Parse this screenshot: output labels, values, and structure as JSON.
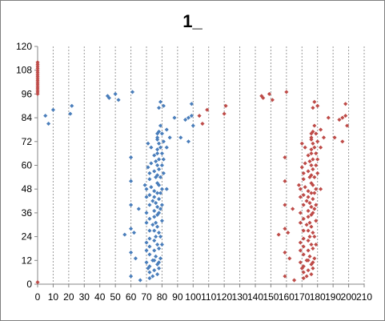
{
  "chart_data": {
    "type": "scatter",
    "title": "1_",
    "xlabel": "",
    "ylabel": "",
    "xlim": [
      0,
      210
    ],
    "ylim": [
      0,
      120
    ],
    "x_ticks": [
      0,
      10,
      20,
      30,
      40,
      50,
      60,
      70,
      80,
      90,
      100,
      110,
      120,
      130,
      140,
      150,
      160,
      170,
      180,
      190,
      200,
      210
    ],
    "y_ticks": [
      0,
      12,
      24,
      36,
      48,
      60,
      72,
      84,
      96,
      108,
      120
    ],
    "x_gridlines": true,
    "y_gridlines": false,
    "legend": "none",
    "series": [
      {
        "color": "#4a7ebb",
        "marker": "diamond",
        "points": [
          [
            5,
            85
          ],
          [
            7,
            81
          ],
          [
            10,
            88
          ],
          [
            21,
            86
          ],
          [
            22,
            90
          ],
          [
            45,
            95
          ],
          [
            46,
            94
          ],
          [
            50,
            96
          ],
          [
            52,
            93
          ],
          [
            61,
            97
          ],
          [
            56,
            25
          ],
          [
            60,
            64
          ],
          [
            60,
            52
          ],
          [
            60,
            40
          ],
          [
            60,
            28
          ],
          [
            60,
            16
          ],
          [
            60,
            4
          ],
          [
            62,
            26
          ],
          [
            63,
            13
          ],
          [
            65,
            38
          ],
          [
            66,
            2
          ],
          [
            69,
            50
          ],
          [
            70,
            48
          ],
          [
            70,
            44
          ],
          [
            70,
            36
          ],
          [
            70,
            31
          ],
          [
            70,
            21
          ],
          [
            70,
            17
          ],
          [
            70,
            11
          ],
          [
            71,
            71
          ],
          [
            71,
            59
          ],
          [
            71,
            8
          ],
          [
            72,
            56
          ],
          [
            72,
            53
          ],
          [
            72,
            45
          ],
          [
            72,
            40
          ],
          [
            72,
            33
          ],
          [
            72,
            27
          ],
          [
            72,
            23
          ],
          [
            72,
            19
          ],
          [
            72,
            15
          ],
          [
            72,
            9
          ],
          [
            72,
            6
          ],
          [
            72,
            3
          ],
          [
            73,
            69
          ],
          [
            73,
            61
          ],
          [
            73,
            49
          ],
          [
            74,
            42
          ],
          [
            74,
            30
          ],
          [
            74,
            12
          ],
          [
            74,
            4
          ],
          [
            75,
            65
          ],
          [
            75,
            57
          ],
          [
            75,
            47
          ],
          [
            75,
            44
          ],
          [
            75,
            37
          ],
          [
            75,
            34
          ],
          [
            75,
            27
          ],
          [
            75,
            22
          ],
          [
            75,
            17
          ],
          [
            75,
            12
          ],
          [
            75,
            7
          ],
          [
            76,
            62
          ],
          [
            76,
            54
          ],
          [
            76,
            41
          ],
          [
            76,
            31
          ],
          [
            76,
            24
          ],
          [
            76,
            14
          ],
          [
            77,
            76
          ],
          [
            77,
            74
          ],
          [
            77,
            73
          ],
          [
            77,
            68
          ],
          [
            77,
            66
          ],
          [
            77,
            60
          ],
          [
            77,
            55
          ],
          [
            77,
            51
          ],
          [
            77,
            46
          ],
          [
            77,
            39
          ],
          [
            77,
            35
          ],
          [
            77,
            29
          ],
          [
            77,
            20
          ],
          [
            77,
            10
          ],
          [
            77,
            5
          ],
          [
            78,
            89
          ],
          [
            78,
            77
          ],
          [
            78,
            71
          ],
          [
            78,
            63
          ],
          [
            78,
            58
          ],
          [
            78,
            50
          ],
          [
            78,
            43
          ],
          [
            78,
            36
          ],
          [
            78,
            26
          ],
          [
            78,
            18
          ],
          [
            78,
            11
          ],
          [
            78,
            8
          ],
          [
            79,
            92
          ],
          [
            79,
            80
          ],
          [
            79,
            69
          ],
          [
            79,
            54
          ],
          [
            79,
            46
          ],
          [
            79,
            38
          ],
          [
            79,
            24
          ],
          [
            79,
            13
          ],
          [
            80,
            76
          ],
          [
            80,
            66
          ],
          [
            80,
            60
          ],
          [
            80,
            48
          ],
          [
            80,
            40
          ],
          [
            80,
            32
          ],
          [
            80,
            20
          ],
          [
            81,
            90
          ],
          [
            81,
            72
          ],
          [
            81,
            63
          ],
          [
            81,
            56
          ],
          [
            83,
            78
          ],
          [
            83,
            69
          ],
          [
            83,
            48
          ],
          [
            85,
            74
          ],
          [
            88,
            84
          ],
          [
            92,
            74
          ],
          [
            95,
            83
          ],
          [
            97,
            72
          ],
          [
            97,
            84
          ],
          [
            99,
            85
          ],
          [
            99,
            91
          ],
          [
            100,
            80
          ]
        ]
      },
      {
        "color": "#be4b48",
        "marker": "diamond",
        "points": [
          [
            0,
            1
          ],
          [
            0,
            96
          ],
          [
            0,
            97
          ],
          [
            0,
            98
          ],
          [
            0,
            99
          ],
          [
            0,
            100
          ],
          [
            0,
            101
          ],
          [
            0,
            102
          ],
          [
            0,
            103
          ],
          [
            0,
            104
          ],
          [
            0,
            105
          ],
          [
            0,
            106
          ],
          [
            0,
            107
          ],
          [
            0,
            108
          ],
          [
            0,
            109
          ],
          [
            0,
            110
          ],
          [
            0,
            111
          ],
          [
            0,
            112
          ],
          [
            104,
            85
          ],
          [
            106,
            81
          ],
          [
            109,
            88
          ],
          [
            120,
            86
          ],
          [
            121,
            90
          ],
          [
            144,
            95
          ],
          [
            145,
            94
          ],
          [
            149,
            96
          ],
          [
            151,
            93
          ],
          [
            160,
            97
          ],
          [
            155,
            25
          ],
          [
            159,
            64
          ],
          [
            159,
            52
          ],
          [
            159,
            40
          ],
          [
            159,
            28
          ],
          [
            159,
            16
          ],
          [
            159,
            4
          ],
          [
            161,
            26
          ],
          [
            162,
            13
          ],
          [
            164,
            38
          ],
          [
            165,
            2
          ],
          [
            168,
            50
          ],
          [
            169,
            48
          ],
          [
            169,
            44
          ],
          [
            169,
            36
          ],
          [
            169,
            31
          ],
          [
            169,
            21
          ],
          [
            169,
            17
          ],
          [
            169,
            11
          ],
          [
            170,
            71
          ],
          [
            170,
            59
          ],
          [
            170,
            8
          ],
          [
            171,
            56
          ],
          [
            171,
            53
          ],
          [
            171,
            45
          ],
          [
            171,
            40
          ],
          [
            171,
            33
          ],
          [
            171,
            27
          ],
          [
            171,
            23
          ],
          [
            171,
            19
          ],
          [
            171,
            15
          ],
          [
            171,
            9
          ],
          [
            171,
            6
          ],
          [
            171,
            3
          ],
          [
            172,
            69
          ],
          [
            172,
            61
          ],
          [
            172,
            49
          ],
          [
            173,
            42
          ],
          [
            173,
            30
          ],
          [
            173,
            12
          ],
          [
            173,
            4
          ],
          [
            174,
            65
          ],
          [
            174,
            57
          ],
          [
            174,
            47
          ],
          [
            174,
            44
          ],
          [
            174,
            37
          ],
          [
            174,
            34
          ],
          [
            174,
            27
          ],
          [
            174,
            22
          ],
          [
            174,
            17
          ],
          [
            174,
            12
          ],
          [
            174,
            7
          ],
          [
            175,
            62
          ],
          [
            175,
            54
          ],
          [
            175,
            41
          ],
          [
            175,
            31
          ],
          [
            175,
            24
          ],
          [
            175,
            14
          ],
          [
            176,
            76
          ],
          [
            176,
            74
          ],
          [
            176,
            73
          ],
          [
            176,
            68
          ],
          [
            176,
            66
          ],
          [
            176,
            60
          ],
          [
            176,
            55
          ],
          [
            176,
            51
          ],
          [
            176,
            46
          ],
          [
            176,
            39
          ],
          [
            176,
            35
          ],
          [
            176,
            29
          ],
          [
            176,
            20
          ],
          [
            176,
            10
          ],
          [
            176,
            5
          ],
          [
            177,
            89
          ],
          [
            177,
            77
          ],
          [
            177,
            71
          ],
          [
            177,
            63
          ],
          [
            177,
            58
          ],
          [
            177,
            50
          ],
          [
            177,
            43
          ],
          [
            177,
            36
          ],
          [
            177,
            26
          ],
          [
            177,
            18
          ],
          [
            177,
            11
          ],
          [
            177,
            8
          ],
          [
            178,
            92
          ],
          [
            178,
            80
          ],
          [
            178,
            69
          ],
          [
            178,
            54
          ],
          [
            178,
            46
          ],
          [
            178,
            38
          ],
          [
            178,
            24
          ],
          [
            178,
            13
          ],
          [
            179,
            76
          ],
          [
            179,
            66
          ],
          [
            179,
            60
          ],
          [
            179,
            48
          ],
          [
            179,
            40
          ],
          [
            179,
            32
          ],
          [
            179,
            20
          ],
          [
            180,
            90
          ],
          [
            180,
            72
          ],
          [
            180,
            63
          ],
          [
            180,
            56
          ],
          [
            182,
            78
          ],
          [
            182,
            69
          ],
          [
            182,
            48
          ],
          [
            184,
            74
          ],
          [
            187,
            84
          ],
          [
            191,
            74
          ],
          [
            194,
            83
          ],
          [
            196,
            72
          ],
          [
            196,
            84
          ],
          [
            198,
            85
          ],
          [
            198,
            91
          ],
          [
            199,
            80
          ]
        ]
      }
    ]
  }
}
